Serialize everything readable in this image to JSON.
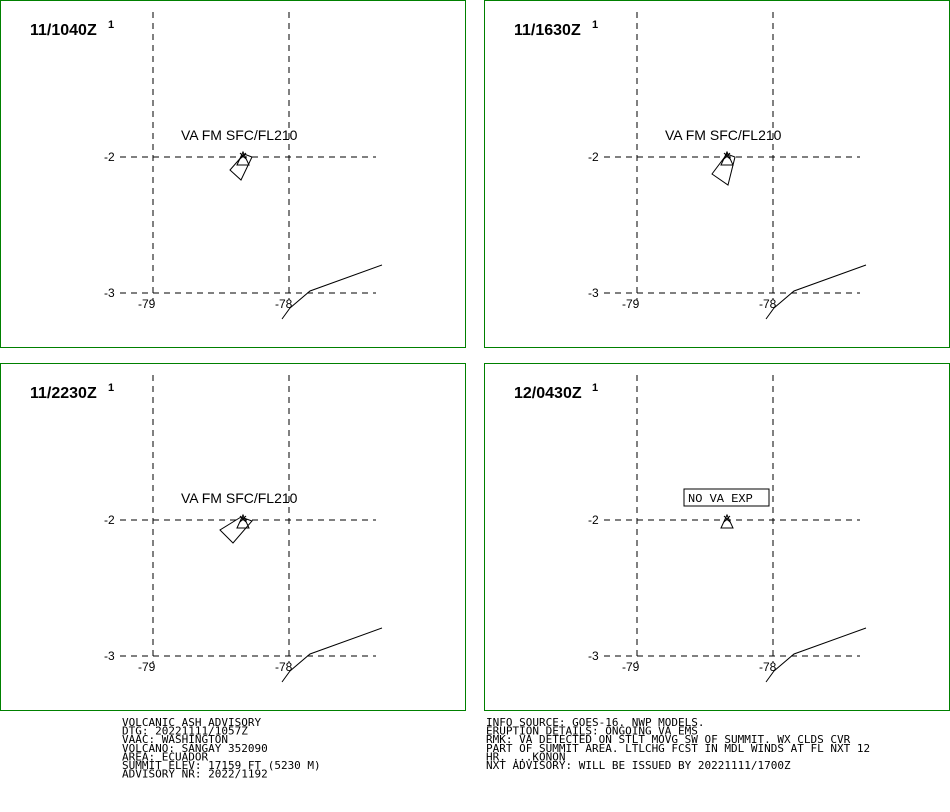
{
  "panels": [
    {
      "time": "11/1040Z",
      "superscript": "1",
      "label": "VA FM SFC/FL210"
    },
    {
      "time": "11/1630Z",
      "superscript": "1",
      "label": "VA FM SFC/FL210"
    },
    {
      "time": "11/2230Z",
      "superscript": "1",
      "label": "VA FM SFC/FL210"
    },
    {
      "time": "12/0430Z",
      "superscript": "1",
      "label": "NO VA EXP"
    }
  ],
  "lat_labels": [
    "-2",
    "-3"
  ],
  "lon_labels": [
    "-79",
    "-78"
  ],
  "advisory_left": [
    "VOLCANIC ASH ADVISORY",
    "DTG: 20221111/1057Z",
    "VAAC: WASHINGTON",
    "VOLCANO: SANGAY 352090",
    "AREA: ECUADOR",
    "SUMMIT ELEV: 17159 FT (5230 M)",
    "ADVISORY NR: 2022/1192"
  ],
  "advisory_right": [
    "INFO SOURCE: GOES-16. NWP MODELS.",
    "ERUPTION DETAILS: ONGOING VA EMS",
    "RMK: VA DETECTED ON STLT MOVG SW OF SUMMIT. WX CLDS CVR",
    "PART OF SUMMIT AREA. LTLCHG FCST IN MDL WINDS AT FL NXT 12",
    "HR. ...KONON",
    "NXT ADVISORY: WILL BE ISSUED BY 20221111/1700Z"
  ]
}
